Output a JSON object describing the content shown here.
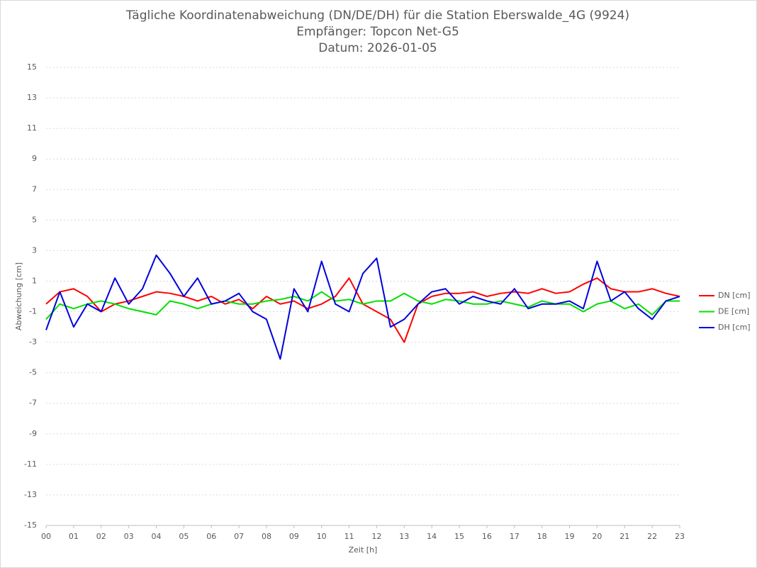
{
  "chart_data": {
    "type": "line",
    "title": "Tägliche Koordinatenabweichung (DN/DE/DH) für die Station Eberswalde_4G (9924)",
    "subtitle": "Empfänger: Topcon Net-G5",
    "date_label": "Datum: 2026-01-05",
    "x_label": "Zeit [h]",
    "y_label": "Abweichung [cm]",
    "x": [
      0,
      0.5,
      1,
      1.5,
      2,
      2.5,
      3,
      3.5,
      4,
      4.5,
      5,
      5.5,
      6,
      6.5,
      7,
      7.5,
      8,
      8.5,
      9,
      9.5,
      10,
      10.5,
      11,
      11.5,
      12,
      12.5,
      13,
      13.5,
      14,
      14.5,
      15,
      15.5,
      16,
      16.5,
      17,
      17.5,
      18,
      18.5,
      19,
      19.5,
      20,
      20.5,
      21,
      21.5,
      22,
      22.5,
      23
    ],
    "series": [
      {
        "name": "DN [cm]",
        "color": "#ff0000",
        "values": [
          -0.5,
          0.3,
          0.5,
          0,
          -1,
          -0.5,
          -0.3,
          0,
          0.3,
          0.2,
          0,
          -0.3,
          0,
          -0.5,
          -0.2,
          -0.8,
          0,
          -0.5,
          -0.3,
          -0.8,
          -0.5,
          0,
          1.2,
          -0.5,
          -1,
          -1.5,
          -3,
          -0.5,
          0,
          0.2,
          0.2,
          0.3,
          0,
          0.2,
          0.3,
          0.2,
          0.5,
          0.2,
          0.3,
          0.8,
          1.2,
          0.5,
          0.3,
          0.3,
          0.5,
          0.2,
          0
        ]
      },
      {
        "name": "DE [cm]",
        "color": "#00e000",
        "values": [
          -1.5,
          -0.5,
          -0.8,
          -0.5,
          -0.3,
          -0.5,
          -0.8,
          -1,
          -1.2,
          -0.3,
          -0.5,
          -0.8,
          -0.5,
          -0.3,
          -0.5,
          -0.5,
          -0.3,
          -0.2,
          0,
          -0.3,
          0.3,
          -0.3,
          -0.2,
          -0.5,
          -0.3,
          -0.3,
          0.2,
          -0.3,
          -0.5,
          -0.2,
          -0.3,
          -0.5,
          -0.5,
          -0.3,
          -0.5,
          -0.7,
          -0.3,
          -0.5,
          -0.5,
          -1,
          -0.5,
          -0.3,
          -0.8,
          -0.5,
          -1.2,
          -0.3,
          -0.3
        ]
      },
      {
        "name": "DH [cm]",
        "color": "#0000dd",
        "values": [
          -2.2,
          0.3,
          -2,
          -0.5,
          -1,
          1.2,
          -0.5,
          0.5,
          2.7,
          1.5,
          0,
          1.2,
          -0.5,
          -0.3,
          0.2,
          -1,
          -1.5,
          -4.1,
          0.5,
          -1,
          2.3,
          -0.5,
          -1,
          1.5,
          2.5,
          -2,
          -1.5,
          -0.5,
          0.3,
          0.5,
          -0.5,
          0,
          -0.3,
          -0.5,
          0.5,
          -0.8,
          -0.5,
          -0.5,
          -0.3,
          -0.8,
          2.3,
          -0.3,
          0.3,
          -0.8,
          -1.5,
          -0.3,
          0
        ]
      }
    ],
    "xlim": [
      0,
      23
    ],
    "xticks": [
      {
        "value": 0,
        "label": "00"
      },
      {
        "value": 1,
        "label": "01"
      },
      {
        "value": 2,
        "label": "02"
      },
      {
        "value": 3,
        "label": "03"
      },
      {
        "value": 4,
        "label": "04"
      },
      {
        "value": 5,
        "label": "05"
      },
      {
        "value": 6,
        "label": "06"
      },
      {
        "value": 7,
        "label": "07"
      },
      {
        "value": 8,
        "label": "08"
      },
      {
        "value": 9,
        "label": "09"
      },
      10,
      11,
      12,
      13,
      14,
      15,
      16,
      17,
      18,
      19,
      20,
      21,
      22,
      23
    ],
    "ylim": [
      -15,
      15
    ],
    "yticks": [
      15,
      13,
      11,
      9,
      7,
      5,
      3,
      1,
      -1,
      -3,
      -5,
      -7,
      -9,
      -11,
      -13,
      -15
    ],
    "grid": true,
    "legend": "right"
  }
}
